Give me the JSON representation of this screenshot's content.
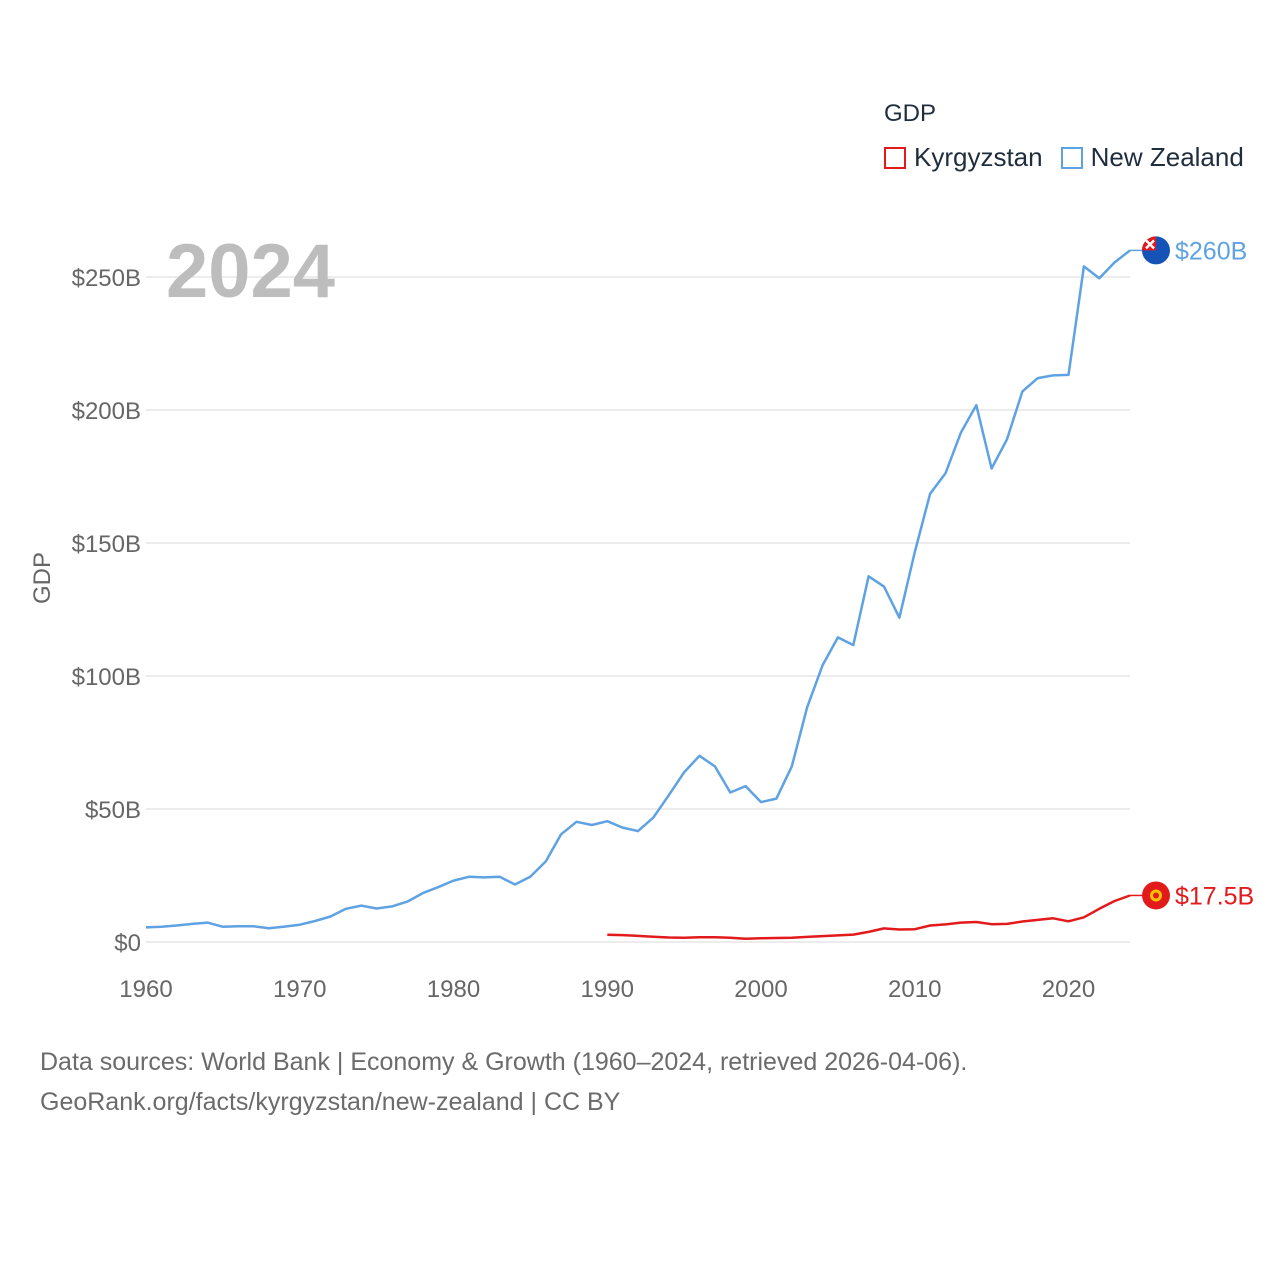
{
  "legend": {
    "title": "GDP",
    "items": [
      {
        "label": "Kyrgyzstan",
        "color": "#e31a1c"
      },
      {
        "label": "New Zealand",
        "color": "#5fa2e3"
      }
    ]
  },
  "year_label": "2024",
  "source": {
    "line1": "Data sources: World Bank | Economy & Growth (1960–2024, retrieved 2026-04-06).",
    "line2": "GeoRank.org/facts/kyrgyzstan/new-zealand | CC BY"
  },
  "chart_data": {
    "type": "line",
    "title": "GDP",
    "xlabel": "",
    "ylabel": "GDP",
    "xlim": [
      1960,
      2024
    ],
    "ylim": [
      0,
      250
    ],
    "unit": "billion USD",
    "x_ticks": [
      1960,
      1970,
      1980,
      1990,
      2000,
      2010,
      2020
    ],
    "x_tick_labels": [
      "1960",
      "1970",
      "1980",
      "1990",
      "2000",
      "2010",
      "2020"
    ],
    "y_ticks": [
      0,
      50,
      100,
      150,
      200,
      250
    ],
    "y_tick_labels": [
      "$0",
      "$50B",
      "$100B",
      "$150B",
      "$200B",
      "$250B"
    ],
    "grid": true,
    "series": [
      {
        "name": "New Zealand",
        "color": "#5fa2e3",
        "end_label": "$260B",
        "x": [
          1960,
          1961,
          1962,
          1963,
          1964,
          1965,
          1966,
          1967,
          1968,
          1969,
          1970,
          1971,
          1972,
          1973,
          1974,
          1975,
          1976,
          1977,
          1978,
          1979,
          1980,
          1981,
          1982,
          1983,
          1984,
          1985,
          1986,
          1987,
          1988,
          1989,
          1990,
          1991,
          1992,
          1993,
          1994,
          1995,
          1996,
          1997,
          1998,
          1999,
          2000,
          2001,
          2002,
          2003,
          2004,
          2005,
          2006,
          2007,
          2008,
          2009,
          2010,
          2011,
          2012,
          2013,
          2014,
          2015,
          2016,
          2017,
          2018,
          2019,
          2020,
          2021,
          2022,
          2023,
          2024
        ],
        "values": [
          5.5,
          5.7,
          6.2,
          6.8,
          7.3,
          5.7,
          5.9,
          5.9,
          5.2,
          5.8,
          6.5,
          7.9,
          9.6,
          12.5,
          13.7,
          12.6,
          13.4,
          15.2,
          18.4,
          20.6,
          23.1,
          24.5,
          24.3,
          24.5,
          21.6,
          24.6,
          30.3,
          40.5,
          45.2,
          44.0,
          45.4,
          43.0,
          41.7,
          46.8,
          55.2,
          63.8,
          70.0,
          66.0,
          56.2,
          58.6,
          52.6,
          53.9,
          66.0,
          88.2,
          104.0,
          114.5,
          111.6,
          137.5,
          133.6,
          121.9,
          146.6,
          168.5,
          176.2,
          191.5,
          201.8,
          178.0,
          189.0,
          207.0,
          212.0,
          213.0,
          213.2,
          254.0,
          249.5,
          255.5,
          260.0
        ]
      },
      {
        "name": "Kyrgyzstan",
        "color": "#e31a1c",
        "end_label": "$17.5B",
        "x": [
          1990,
          1991,
          1992,
          1993,
          1994,
          1995,
          1996,
          1997,
          1998,
          1999,
          2000,
          2001,
          2002,
          2003,
          2004,
          2005,
          2006,
          2007,
          2008,
          2009,
          2010,
          2011,
          2012,
          2013,
          2014,
          2015,
          2016,
          2017,
          2018,
          2019,
          2020,
          2021,
          2022,
          2023,
          2024
        ],
        "values": [
          2.7,
          2.6,
          2.3,
          2.0,
          1.7,
          1.6,
          1.8,
          1.8,
          1.6,
          1.2,
          1.4,
          1.5,
          1.6,
          1.9,
          2.2,
          2.5,
          2.8,
          3.8,
          5.1,
          4.7,
          4.8,
          6.2,
          6.6,
          7.3,
          7.5,
          6.7,
          6.8,
          7.7,
          8.3,
          8.9,
          7.8,
          9.3,
          12.5,
          15.4,
          17.5
        ]
      }
    ]
  }
}
